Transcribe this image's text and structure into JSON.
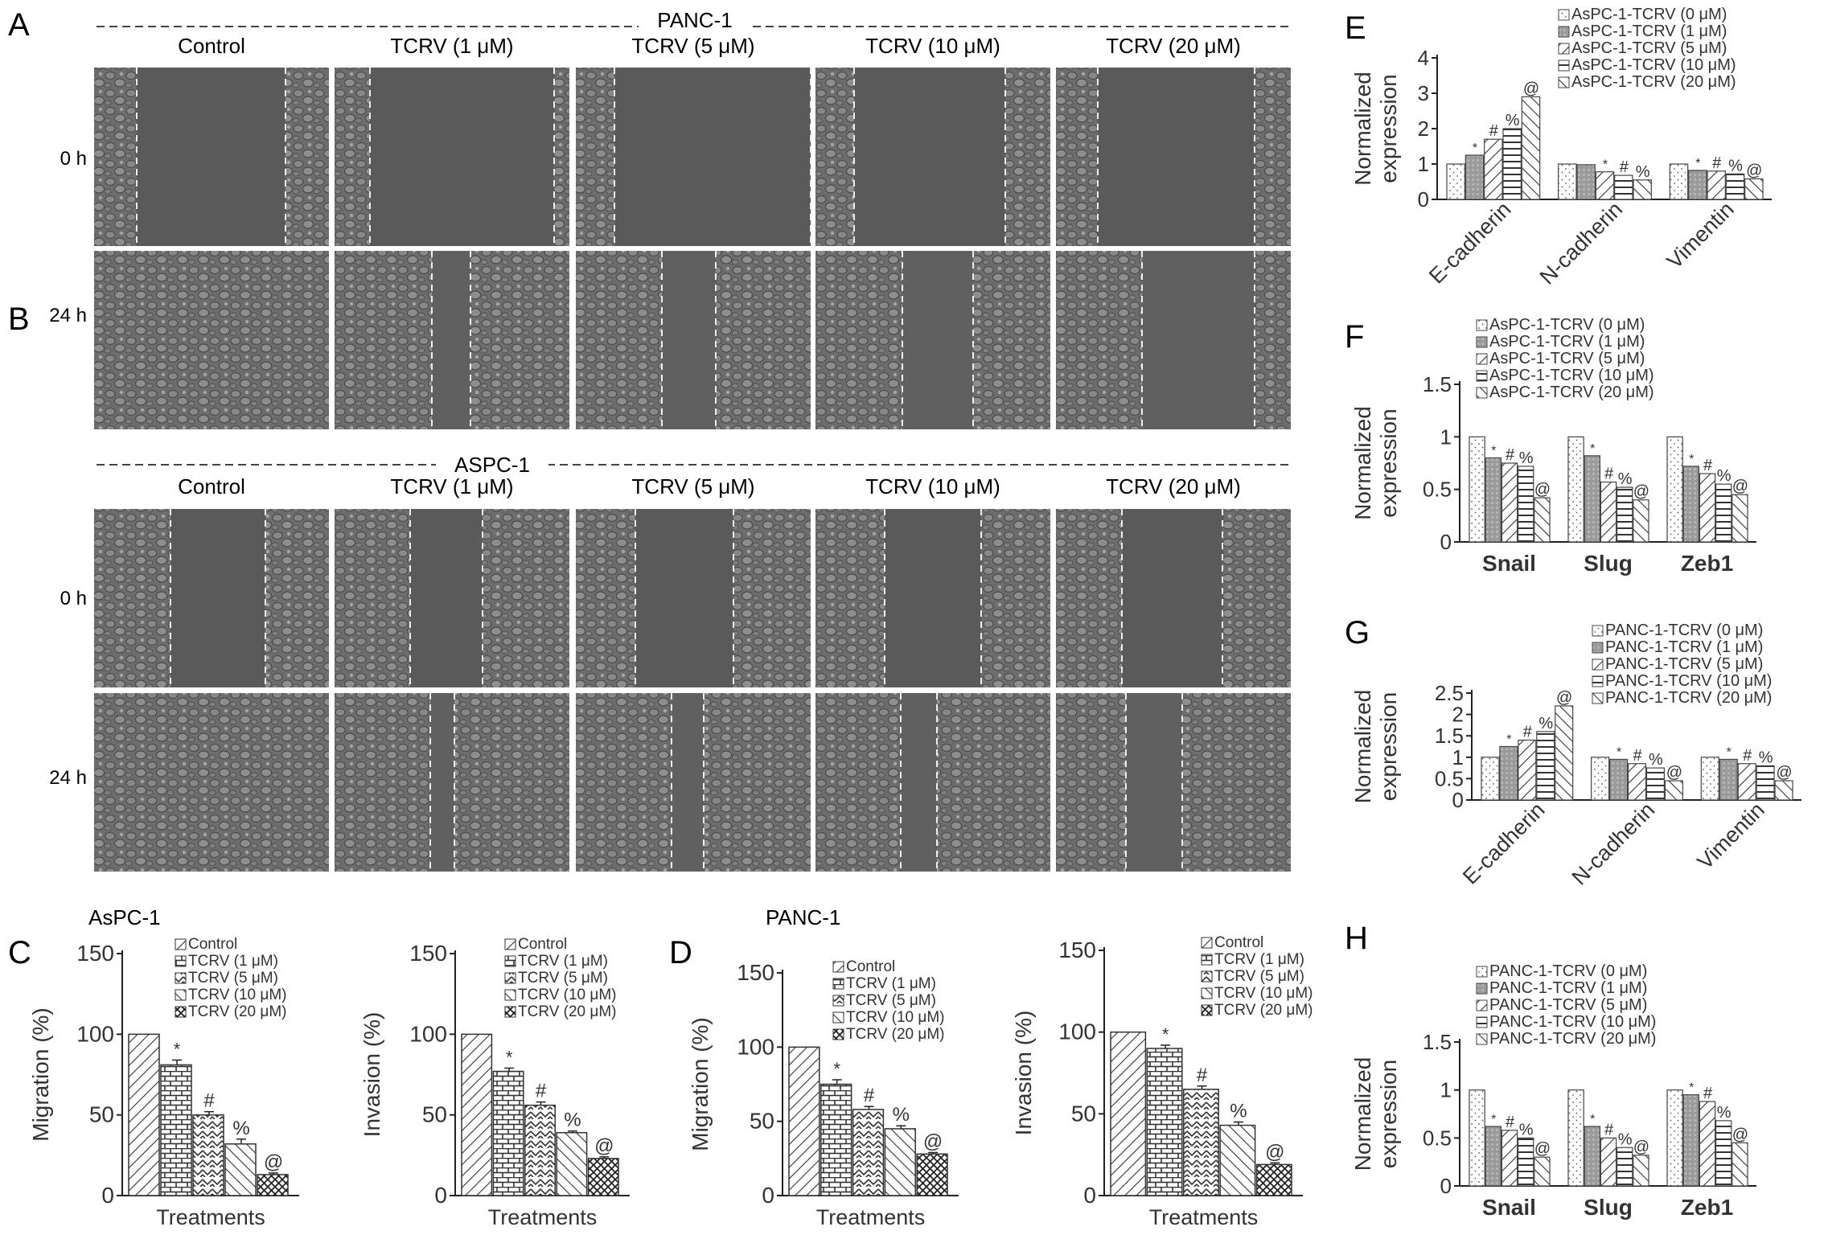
{
  "panels": {
    "A": {
      "letter": "A",
      "cell_line": "PANC-1",
      "columns": [
        "Control",
        "TCRV  (1 μM)",
        "TCRV  (5 μM)",
        "TCRV  (10 μM)",
        "TCRV  (20 μM)"
      ],
      "rows": [
        "0 h",
        "24 h"
      ]
    },
    "B": {
      "letter": "B",
      "cell_line": "ASPC-1",
      "columns": [
        "Control",
        "TCRV  (1 μM)",
        "TCRV  (5 μM)",
        "TCRV  (10 μM)",
        "TCRV  (20 μM)"
      ],
      "rows": [
        "0 h",
        "24 h"
      ]
    },
    "C": {
      "letter": "C",
      "title": "AsPC-1"
    },
    "D": {
      "letter": "D",
      "title": "PANC-1"
    },
    "E": {
      "letter": "E"
    },
    "F": {
      "letter": "F"
    },
    "G": {
      "letter": "G"
    },
    "H": {
      "letter": "H"
    }
  },
  "chart_data": [
    {
      "id": "C-migration",
      "panel": "C",
      "type": "bar",
      "categories": [
        "Control",
        "TCRV (1 μM)",
        "TCRV (5 μM)",
        "TCRV (10 μM)",
        "TCRV (20 μM)"
      ],
      "values": [
        100,
        81,
        50,
        32,
        13
      ],
      "errors": [
        0,
        3,
        2,
        3,
        1
      ],
      "markers": [
        "",
        "*",
        "#",
        "%",
        "@"
      ],
      "xlabel": "Treatments",
      "ylabel": "Migration (%)",
      "ylim": [
        0,
        150
      ],
      "yticks": [
        "0",
        "50",
        "100",
        "150"
      ],
      "legend": [
        "Control",
        "TCRV (1 μM)",
        "TCRV (5 μM)",
        "TCRV (10 μM)",
        "TCRV (20 μM)"
      ]
    },
    {
      "id": "C-invasion",
      "panel": "C",
      "type": "bar",
      "categories": [
        "Control",
        "TCRV (1 μM)",
        "TCRV (5 μM)",
        "TCRV (10 μM)",
        "TCRV (20 μM)"
      ],
      "values": [
        100,
        77,
        56,
        39,
        23
      ],
      "errors": [
        0,
        2,
        2,
        1,
        1
      ],
      "markers": [
        "",
        "*",
        "#",
        "%",
        "@"
      ],
      "xlabel": "Treatments",
      "ylabel": "Invasion (%)",
      "ylim": [
        0,
        150
      ],
      "yticks": [
        "0",
        "50",
        "100",
        "150"
      ],
      "legend": [
        "Control",
        "TCRV (1 μM)",
        "TCRV (5 μM)",
        "TCRV (10 μM)",
        "TCRV (20 μM)"
      ]
    },
    {
      "id": "D-migration",
      "panel": "D",
      "type": "bar",
      "categories": [
        "Control",
        "TCRV (1 μM)",
        "TCRV (5 μM)",
        "TCRV (10 μM)",
        "TCRV (20 μM)"
      ],
      "values": [
        100,
        75,
        58,
        45,
        28
      ],
      "errors": [
        0,
        3,
        2,
        2,
        1
      ],
      "markers": [
        "",
        "*",
        "#",
        "%",
        "@"
      ],
      "xlabel": "Treatments",
      "ylabel": "Migration (%)",
      "ylim": [
        0,
        150
      ],
      "yticks": [
        "0",
        "50",
        "100",
        "150"
      ],
      "legend": [
        "Control",
        "TCRV (1 μM)",
        "TCRV (5 μM)",
        "TCRV (10 μM)",
        "TCRV (20 μM)"
      ]
    },
    {
      "id": "D-invasion",
      "panel": "D",
      "type": "bar",
      "categories": [
        "Control",
        "TCRV (1 μM)",
        "TCRV (5 μM)",
        "TCRV (10 μM)",
        "TCRV (20 μM)"
      ],
      "values": [
        100,
        90,
        65,
        43,
        19
      ],
      "errors": [
        0,
        2,
        2,
        2,
        1
      ],
      "markers": [
        "",
        "*",
        "#",
        "%",
        "@"
      ],
      "xlabel": "Treatments",
      "ylabel": "Invasion (%)",
      "ylim": [
        0,
        150
      ],
      "yticks": [
        "0",
        "50",
        "100",
        "150"
      ],
      "legend": [
        "Control",
        "TCRV (1 μM)",
        "TCRV (5 μM)",
        "TCRV (10 μM)",
        "TCRV (20 μM)"
      ]
    },
    {
      "id": "E",
      "panel": "E",
      "type": "bar",
      "categories": [
        "E-cadherin",
        "N-cadherin",
        "Vimentin"
      ],
      "series": [
        {
          "name": "AsPC-1-TCRV (0 μM)",
          "values": [
            1.0,
            1.0,
            1.0
          ],
          "markers": [
            "",
            "",
            ""
          ]
        },
        {
          "name": "AsPC-1-TCRV (1 μM)",
          "values": [
            1.25,
            0.98,
            0.82
          ],
          "markers": [
            "*",
            "",
            "*"
          ]
        },
        {
          "name": "AsPC-1-TCRV (5 μM)",
          "values": [
            1.7,
            0.78,
            0.8
          ],
          "markers": [
            "#",
            "*",
            "#"
          ]
        },
        {
          "name": "AsPC-1-TCRV (10 μM)",
          "values": [
            2.0,
            0.68,
            0.72
          ],
          "markers": [
            "%",
            "#",
            "%"
          ]
        },
        {
          "name": "AsPC-1-TCRV (20 μM)",
          "values": [
            2.9,
            0.55,
            0.58
          ],
          "markers": [
            "@",
            "%",
            "@"
          ]
        }
      ],
      "ylabel": "Normalized expression",
      "ylim": [
        0,
        4
      ],
      "yticks": [
        "0",
        "1",
        "2",
        "3",
        "4"
      ],
      "rotated_xlabels": true
    },
    {
      "id": "F",
      "panel": "F",
      "type": "bar",
      "categories": [
        "Snail",
        "Slug",
        "Zeb1"
      ],
      "series": [
        {
          "name": "AsPC-1-TCRV (0 μM)",
          "values": [
            1.0,
            1.0,
            1.0
          ],
          "markers": [
            "",
            "",
            ""
          ]
        },
        {
          "name": "AsPC-1-TCRV (1 μM)",
          "values": [
            0.8,
            0.82,
            0.72
          ],
          "markers": [
            "*",
            "*",
            "*"
          ]
        },
        {
          "name": "AsPC-1-TCRV (5 μM)",
          "values": [
            0.75,
            0.57,
            0.65
          ],
          "markers": [
            "#",
            "#",
            "#"
          ]
        },
        {
          "name": "AsPC-1-TCRV (10 μM)",
          "values": [
            0.72,
            0.52,
            0.55
          ],
          "markers": [
            "%",
            "%",
            "%"
          ]
        },
        {
          "name": "AsPC-1-TCRV (20 μM)",
          "values": [
            0.42,
            0.4,
            0.45
          ],
          "markers": [
            "@",
            "@",
            "@"
          ]
        }
      ],
      "ylabel": "Normalized expression",
      "ylim": [
        0,
        1.5
      ],
      "yticks": [
        "0",
        "0.5",
        "1",
        "1.5"
      ],
      "rotated_xlabels": false
    },
    {
      "id": "G",
      "panel": "G",
      "type": "bar",
      "categories": [
        "E-cadherin",
        "N-cadherin",
        "Vimentin"
      ],
      "series": [
        {
          "name": "PANC-1-TCRV (0 μM)",
          "values": [
            1.0,
            1.0,
            1.0
          ],
          "markers": [
            "",
            "",
            ""
          ]
        },
        {
          "name": "PANC-1-TCRV (1 μM)",
          "values": [
            1.25,
            0.95,
            0.95
          ],
          "markers": [
            "*",
            "*",
            "*"
          ]
        },
        {
          "name": "PANC-1-TCRV (5 μM)",
          "values": [
            1.4,
            0.85,
            0.85
          ],
          "markers": [
            "#",
            "#",
            "#"
          ]
        },
        {
          "name": "PANC-1-TCRV (10 μM)",
          "values": [
            1.6,
            0.75,
            0.8
          ],
          "markers": [
            "%",
            "%",
            "%"
          ]
        },
        {
          "name": "PANC-1-TCRV (20 μM)",
          "values": [
            2.2,
            0.45,
            0.45
          ],
          "markers": [
            "@",
            "@",
            "@"
          ]
        }
      ],
      "ylabel": "Normalized expression",
      "ylim": [
        0,
        2.5
      ],
      "yticks": [
        "0",
        "0.5",
        "1",
        "1.5",
        "2",
        "2.5"
      ],
      "rotated_xlabels": true
    },
    {
      "id": "H",
      "panel": "H",
      "type": "bar",
      "categories": [
        "Snail",
        "Slug",
        "Zeb1"
      ],
      "series": [
        {
          "name": "PANC-1-TCRV (0 μM)",
          "values": [
            1.0,
            1.0,
            1.0
          ],
          "markers": [
            "",
            "",
            ""
          ]
        },
        {
          "name": "PANC-1-TCRV (1 μM)",
          "values": [
            0.62,
            0.62,
            0.95
          ],
          "markers": [
            "*",
            "*",
            "*"
          ]
        },
        {
          "name": "PANC-1-TCRV (5 μM)",
          "values": [
            0.58,
            0.5,
            0.88
          ],
          "markers": [
            "#",
            "#",
            "#"
          ]
        },
        {
          "name": "PANC-1-TCRV (10 μM)",
          "values": [
            0.5,
            0.4,
            0.68
          ],
          "markers": [
            "%",
            "%",
            "%"
          ]
        },
        {
          "name": "PANC-1-TCRV (20 μM)",
          "values": [
            0.3,
            0.32,
            0.45
          ],
          "markers": [
            "@",
            "@",
            "@"
          ]
        }
      ],
      "ylabel": "Normalized expression",
      "ylim": [
        0,
        1.5
      ],
      "yticks": [
        "0",
        "0.5",
        "1",
        "1.5"
      ],
      "rotated_xlabels": false
    }
  ]
}
